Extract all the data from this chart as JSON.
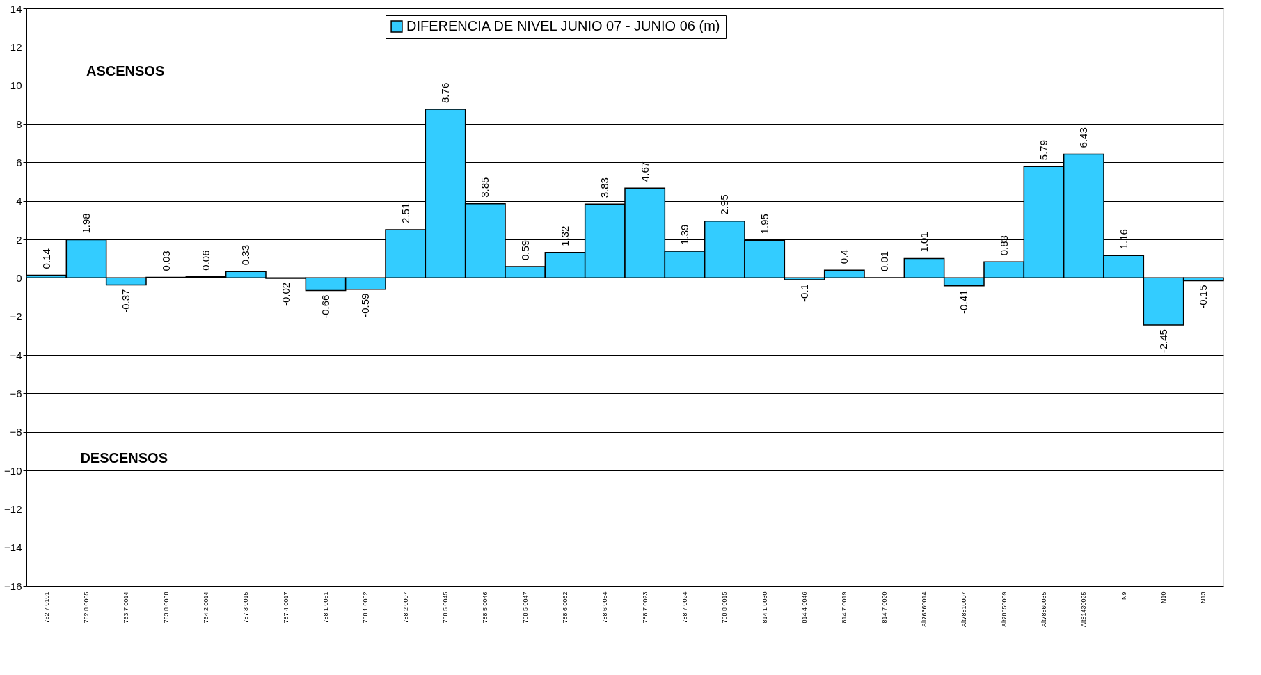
{
  "chart_data": {
    "type": "bar",
    "categories": [
      "762 7 0101",
      "762 8 0005",
      "763 7 0014",
      "763 8 0038",
      "764 2 0014",
      "787 3 0015",
      "787 4 0017",
      "788 1 0051",
      "788 1 0052",
      "788 2 0007",
      "788 5 0045",
      "788 5 0046",
      "788 5 0047",
      "788 6 0052",
      "788 6 0054",
      "788 7 0023",
      "788 7 0024",
      "788 8 0015",
      "814 1 0030",
      "814 4 0046",
      "814 7 0019",
      "814 7 0020",
      "Alt76360014",
      "Alt78810007",
      "Alt78850009",
      "Alt78860035",
      "Alt81430025",
      "N9",
      "N10",
      "N13"
    ],
    "series": [
      {
        "name": "DIFERENCIA DE NIVEL JUNIO 07 - JUNIO 06 (m)",
        "color": "#33ccff",
        "values": [
          0.14,
          1.98,
          -0.37,
          0.03,
          0.06,
          0.33,
          -0.02,
          -0.66,
          -0.59,
          2.51,
          8.76,
          3.85,
          0.59,
          1.32,
          3.83,
          4.67,
          1.39,
          2.95,
          1.95,
          -0.1,
          0.4,
          0.01,
          1.01,
          -0.41,
          0.83,
          5.79,
          6.43,
          1.16,
          -2.45,
          -0.15
        ]
      }
    ],
    "ylim": [
      -16,
      14
    ],
    "yticks": [
      -16,
      -14,
      -12,
      -10,
      -8,
      -6,
      -4,
      -2,
      0,
      2,
      4,
      6,
      8,
      10,
      12,
      14
    ],
    "grid": "y",
    "legend": "top",
    "data_labels": true,
    "annotations": [
      "ASCENSOS",
      "DESCENSOS"
    ]
  }
}
